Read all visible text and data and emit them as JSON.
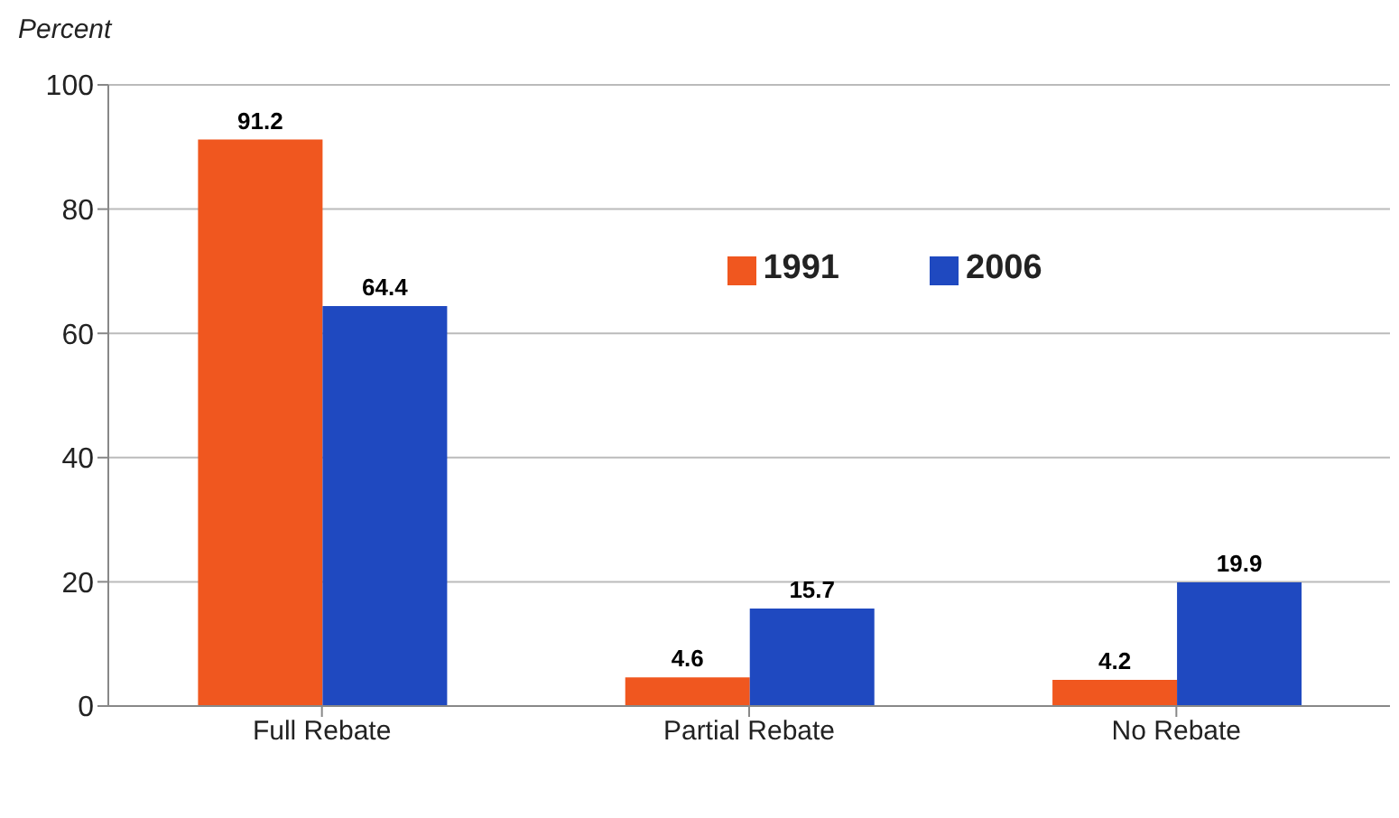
{
  "chart_data": {
    "type": "bar",
    "ylabel": "Percent",
    "categories": [
      "Full Rebate",
      "Partial Rebate",
      "No Rebate"
    ],
    "series": [
      {
        "name": "1991",
        "color": "#f0571f",
        "values": [
          91.2,
          4.6,
          4.2
        ]
      },
      {
        "name": "2006",
        "color": "#1f49c0",
        "values": [
          64.4,
          15.7,
          19.9
        ]
      }
    ],
    "ylim": [
      0,
      100
    ],
    "yticks": [
      0,
      20,
      40,
      60,
      80,
      100
    ],
    "grid": "y",
    "legend": "top right",
    "data_labels": true
  }
}
